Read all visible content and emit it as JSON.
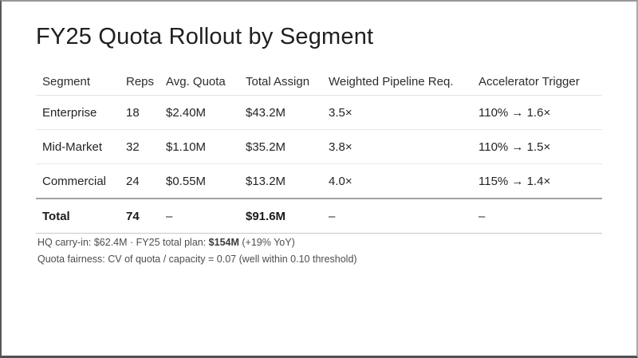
{
  "slide": {
    "title": "FY25 Quota Rollout by Segment"
  },
  "table": {
    "columns": {
      "segment": "Segment",
      "reps": "Reps",
      "avg_quota": "Avg. Quota",
      "total_assign": "Total Assign",
      "pipeline": "Weighted Pipeline Req.",
      "accelerator": "Accelerator Trigger"
    },
    "rows": [
      {
        "segment": "Enterprise",
        "reps": "18",
        "avg_quota": "$2.40M",
        "total_assign": "$43.2M",
        "pipeline": "3.5×",
        "accelerator": "110% → 1.6×"
      },
      {
        "segment": "Mid-Market",
        "reps": "32",
        "avg_quota": "$1.10M",
        "total_assign": "$35.2M",
        "pipeline": "3.8×",
        "accelerator": "110% → 1.5×"
      },
      {
        "segment": "Commercial",
        "reps": "24",
        "avg_quota": "$0.55M",
        "total_assign": "$13.2M",
        "pipeline": "4.0×",
        "accelerator": "115% → 1.4×"
      }
    ],
    "total": {
      "segment": "Total",
      "reps": "74",
      "avg_quota": "–",
      "total_assign": "$91.6M",
      "pipeline": "–",
      "accelerator": "–"
    }
  },
  "footer": {
    "line1_prefix": "HQ carry-in: $62.4M · FY25 total plan: ",
    "line1_bold": "$154M",
    "line1_suffix": " (+19% YoY)",
    "line2": "Quota fairness: CV of quota / capacity = 0.07 (well within 0.10 threshold)"
  },
  "colors": {
    "text": "#242424",
    "muted_text": "#4d4d4d",
    "row_separator": "#e8e8e8",
    "total_rule": "#a3a3a3",
    "frame": "#58585c"
  }
}
